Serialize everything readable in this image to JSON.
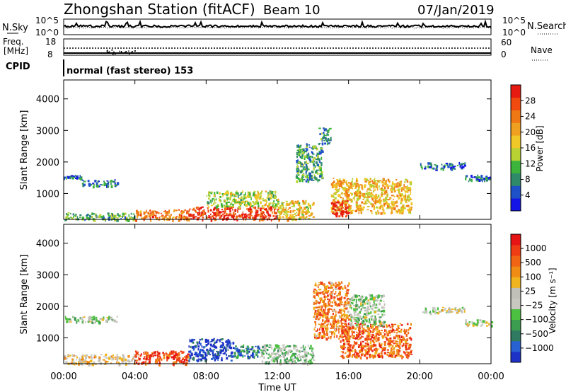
{
  "header": {
    "station": "Zhongshan Station (fitACF)",
    "beam": "Beam 10",
    "date": "07/Jan/2019"
  },
  "strips": {
    "nsky_label": "N.Sky",
    "nsearch_label": "N.Search",
    "nsky_ticks": [
      "10^5",
      "10^0"
    ],
    "nsearch_ticks": [
      "10^5",
      "10^0"
    ],
    "freq_label_1": "Freq.",
    "freq_label_2": "[MHz]",
    "freq_ticks": [
      "18",
      "8"
    ],
    "nave_label": "Nave",
    "nave_ticks": [
      "60",
      "0"
    ],
    "cpid_label": "CPID",
    "cpid_text": "normal (fast stereo) 153"
  },
  "chart_data": [
    {
      "type": "heatmap",
      "name": "Power",
      "title": "",
      "xlabel": "Time UT",
      "ylabel": "Slant Range [km]",
      "x_ticks": [
        "00:00",
        "04:00",
        "08:00",
        "12:00",
        "16:00",
        "20:00",
        "00:00"
      ],
      "y_ticks": [
        1000,
        2000,
        3000,
        4000
      ],
      "xlim_hours": [
        0,
        24
      ],
      "ylim_km": [
        180,
        4600
      ],
      "colorbar_label": "Power [dB]",
      "colorbar_ticks": [
        "4",
        "8",
        "12",
        "16",
        "20",
        "24",
        "28"
      ],
      "colorbar_colors": [
        "#1414e6",
        "#1e50c8",
        "#2f8a6a",
        "#3cb43c",
        "#b8d234",
        "#f0c828",
        "#f0a020",
        "#f07814",
        "#f04a10",
        "#e61a10"
      ],
      "regions": [
        {
          "t": [
            0,
            1.0
          ],
          "r": [
            1500,
            1600
          ],
          "level": 0.2
        },
        {
          "t": [
            1.0,
            3.0
          ],
          "r": [
            1250,
            1450
          ],
          "level": 0.2
        },
        {
          "t": [
            0,
            4.0
          ],
          "r": [
            180,
            400
          ],
          "level": 0.35
        },
        {
          "t": [
            4.0,
            7.0
          ],
          "r": [
            180,
            500
          ],
          "level": 0.75
        },
        {
          "t": [
            7.0,
            12.0
          ],
          "r": [
            180,
            600
          ],
          "level": 0.9
        },
        {
          "t": [
            8.0,
            12.0
          ],
          "r": [
            600,
            1100
          ],
          "level": 0.45
        },
        {
          "t": [
            12.0,
            14.0
          ],
          "r": [
            200,
            800
          ],
          "level": 0.55
        },
        {
          "t": [
            13.0,
            14.5
          ],
          "r": [
            1400,
            2600
          ],
          "level": 0.3
        },
        {
          "t": [
            14.3,
            15.0
          ],
          "r": [
            2600,
            3100
          ],
          "level": 0.25
        },
        {
          "t": [
            15.0,
            19.5
          ],
          "r": [
            400,
            1500
          ],
          "level": 0.6
        },
        {
          "t": [
            15.0,
            16.0
          ],
          "r": [
            300,
            800
          ],
          "level": 0.95
        },
        {
          "t": [
            20.0,
            22.5
          ],
          "r": [
            1800,
            2000
          ],
          "level": 0.2
        },
        {
          "t": [
            22.5,
            24.0
          ],
          "r": [
            1400,
            1600
          ],
          "level": 0.2
        }
      ]
    },
    {
      "type": "heatmap",
      "name": "Velocity",
      "title": "",
      "xlabel": "Time UT",
      "ylabel": "Slant Range [km]",
      "x_ticks": [
        "00:00",
        "04:00",
        "08:00",
        "12:00",
        "16:00",
        "20:00",
        "00:00"
      ],
      "y_ticks": [
        1000,
        2000,
        3000,
        4000
      ],
      "xlim_hours": [
        0,
        24
      ],
      "ylim_km": [
        180,
        4600
      ],
      "colorbar_label": "Velocity [m s⁻¹]",
      "colorbar_ticks": [
        "1000",
        "500",
        "100",
        "25",
        "−25",
        "−100",
        "−500",
        "−1000"
      ],
      "colorbar_colors": [
        "#1e32c8",
        "#2862d2",
        "#2f7a60",
        "#3c9c50",
        "#4cc040",
        "#c8c8c0",
        "#c0c0b8",
        "#f0b41e",
        "#f08c14",
        "#f06414",
        "#f03c14",
        "#e61414"
      ],
      "regions": [
        {
          "t": [
            0,
            3.0
          ],
          "r": [
            1500,
            1700
          ],
          "level": 0.45
        },
        {
          "t": [
            0,
            4.0
          ],
          "r": [
            180,
            500
          ],
          "level": 0.6
        },
        {
          "t": [
            4.0,
            7.0
          ],
          "r": [
            180,
            600
          ],
          "level": 0.85
        },
        {
          "t": [
            7.0,
            9.5
          ],
          "r": [
            300,
            1000
          ],
          "level": 0.05
        },
        {
          "t": [
            9.5,
            11.0
          ],
          "r": [
            400,
            800
          ],
          "level": 0.2
        },
        {
          "t": [
            11.0,
            14.0
          ],
          "r": [
            200,
            800
          ],
          "level": 0.4
        },
        {
          "t": [
            14.0,
            16.0
          ],
          "r": [
            1000,
            2800
          ],
          "level": 0.75
        },
        {
          "t": [
            15.5,
            19.5
          ],
          "r": [
            400,
            1500
          ],
          "level": 0.8
        },
        {
          "t": [
            16.0,
            18.0
          ],
          "r": [
            1400,
            2400
          ],
          "level": 0.45
        },
        {
          "t": [
            20.0,
            22.5
          ],
          "r": [
            1800,
            2000
          ],
          "level": 0.5
        },
        {
          "t": [
            22.5,
            24.0
          ],
          "r": [
            1400,
            1600
          ],
          "level": 0.5
        }
      ]
    }
  ]
}
